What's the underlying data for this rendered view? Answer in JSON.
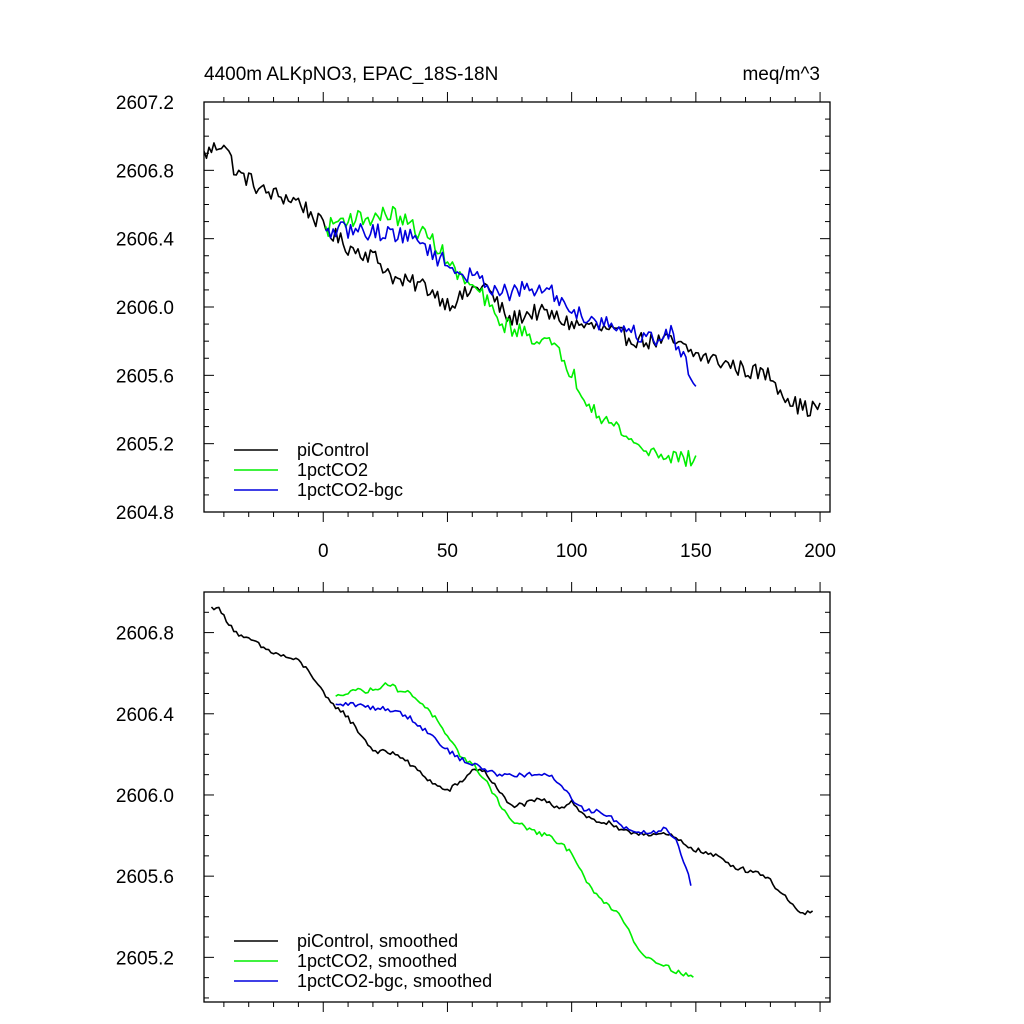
{
  "chart_data": [
    {
      "type": "line",
      "title": "4400m ALKpNO3, EPAC_18S-18N",
      "units": "meq/m^3",
      "xlabel": "",
      "ylabel": "",
      "xlim": [
        -48,
        204
      ],
      "ylim": [
        2604.8,
        2607.2
      ],
      "x_ticks": [
        0,
        50,
        100,
        150,
        200
      ],
      "x_tick_labels": [
        "0",
        "50",
        "100",
        "150",
        "200"
      ],
      "y_ticks": [
        2604.8,
        2605.2,
        2605.6,
        2606.0,
        2606.4,
        2606.8,
        2607.2
      ],
      "y_tick_labels": [
        "2604.8",
        "2605.2",
        "2605.6",
        "2606.0",
        "2606.4",
        "2606.8",
        "2607.2"
      ],
      "legend_position": "bottom-left",
      "series": [
        {
          "name": "piControl",
          "color": "#000000",
          "noise": 0.05,
          "x_range": [
            -48,
            200
          ],
          "anchors": [
            [
              -48,
              2606.89
            ],
            [
              -45,
              2606.92
            ],
            [
              -40,
              2606.97
            ],
            [
              -35,
              2606.78
            ],
            [
              -30,
              2606.75
            ],
            [
              -25,
              2606.68
            ],
            [
              -20,
              2606.66
            ],
            [
              -10,
              2606.62
            ],
            [
              0,
              2606.47
            ],
            [
              10,
              2606.35
            ],
            [
              20,
              2606.3
            ],
            [
              30,
              2606.15
            ],
            [
              40,
              2606.13
            ],
            [
              45,
              2606.08
            ],
            [
              50,
              2606.02
            ],
            [
              55,
              2606.05
            ],
            [
              60,
              2606.1
            ],
            [
              65,
              2606.13
            ],
            [
              70,
              2606.02
            ],
            [
              75,
              2605.92
            ],
            [
              80,
              2605.95
            ],
            [
              85,
              2605.97
            ],
            [
              90,
              2605.96
            ],
            [
              95,
              2605.93
            ],
            [
              100,
              2605.9
            ],
            [
              110,
              2605.88
            ],
            [
              120,
              2605.83
            ],
            [
              130,
              2605.8
            ],
            [
              140,
              2605.8
            ],
            [
              150,
              2605.72
            ],
            [
              160,
              2605.68
            ],
            [
              170,
              2605.63
            ],
            [
              180,
              2605.6
            ],
            [
              185,
              2605.5
            ],
            [
              190,
              2605.43
            ],
            [
              195,
              2605.4
            ],
            [
              200,
              2605.42
            ]
          ]
        },
        {
          "name": "1pctCO2",
          "color": "#00ee00",
          "noise": 0.05,
          "x_range": [
            1,
            150
          ],
          "anchors": [
            [
              1,
              2606.45
            ],
            [
              5,
              2606.5
            ],
            [
              10,
              2606.52
            ],
            [
              20,
              2606.52
            ],
            [
              27,
              2606.55
            ],
            [
              35,
              2606.48
            ],
            [
              45,
              2606.38
            ],
            [
              50,
              2606.27
            ],
            [
              55,
              2606.17
            ],
            [
              60,
              2606.12
            ],
            [
              65,
              2606.05
            ],
            [
              70,
              2605.92
            ],
            [
              80,
              2605.85
            ],
            [
              90,
              2605.8
            ],
            [
              95,
              2605.72
            ],
            [
              100,
              2605.62
            ],
            [
              105,
              2605.48
            ],
            [
              110,
              2605.4
            ],
            [
              115,
              2605.32
            ],
            [
              120,
              2605.28
            ],
            [
              125,
              2605.2
            ],
            [
              130,
              2605.16
            ],
            [
              140,
              2605.13
            ],
            [
              150,
              2605.1
            ]
          ]
        },
        {
          "name": "1pctCO2-bgc",
          "color": "#0000dd",
          "noise": 0.05,
          "x_range": [
            1,
            150
          ],
          "anchors": [
            [
              1,
              2606.42
            ],
            [
              5,
              2606.45
            ],
            [
              10,
              2606.45
            ],
            [
              20,
              2606.44
            ],
            [
              30,
              2606.43
            ],
            [
              40,
              2606.38
            ],
            [
              45,
              2606.3
            ],
            [
              55,
              2606.2
            ],
            [
              65,
              2606.15
            ],
            [
              70,
              2606.1
            ],
            [
              75,
              2606.08
            ],
            [
              80,
              2606.1
            ],
            [
              90,
              2606.1
            ],
            [
              95,
              2606.05
            ],
            [
              100,
              2605.98
            ],
            [
              110,
              2605.92
            ],
            [
              120,
              2605.88
            ],
            [
              130,
              2605.82
            ],
            [
              135,
              2605.82
            ],
            [
              140,
              2605.85
            ],
            [
              145,
              2605.7
            ],
            [
              150,
              2605.55
            ]
          ]
        }
      ]
    },
    {
      "type": "line",
      "title": "",
      "xlabel": "",
      "ylabel": "",
      "xlim": [
        -48,
        204
      ],
      "ylim": [
        2604.98,
        2607.0
      ],
      "x_ticks": [
        0,
        50,
        100,
        150,
        200
      ],
      "y_ticks": [
        2605.2,
        2605.6,
        2606.0,
        2606.4,
        2606.8
      ],
      "y_tick_labels": [
        "2605.2",
        "2605.6",
        "2606.0",
        "2606.4",
        "2606.8"
      ],
      "legend_position": "bottom-left",
      "series": [
        {
          "name": "piControl, smoothed",
          "color": "#000000",
          "noise": 0.012,
          "x_range": [
            -45,
            197
          ],
          "anchors": [
            [
              -45,
              2606.92
            ],
            [
              -43,
              2606.93
            ],
            [
              -40,
              2606.88
            ],
            [
              -35,
              2606.8
            ],
            [
              -32,
              2606.77
            ],
            [
              -28,
              2606.76
            ],
            [
              -25,
              2606.73
            ],
            [
              -20,
              2606.7
            ],
            [
              -15,
              2606.68
            ],
            [
              -10,
              2606.66
            ],
            [
              -5,
              2606.6
            ],
            [
              0,
              2606.5
            ],
            [
              3,
              2606.45
            ],
            [
              7,
              2606.42
            ],
            [
              10,
              2606.38
            ],
            [
              15,
              2606.3
            ],
            [
              20,
              2606.22
            ],
            [
              25,
              2606.21
            ],
            [
              30,
              2606.2
            ],
            [
              35,
              2606.15
            ],
            [
              40,
              2606.1
            ],
            [
              45,
              2606.05
            ],
            [
              50,
              2606.02
            ],
            [
              55,
              2606.06
            ],
            [
              60,
              2606.12
            ],
            [
              63,
              2606.13
            ],
            [
              66,
              2606.1
            ],
            [
              70,
              2606.03
            ],
            [
              75,
              2605.95
            ],
            [
              80,
              2605.95
            ],
            [
              85,
              2605.97
            ],
            [
              88,
              2605.98
            ],
            [
              92,
              2605.95
            ],
            [
              96,
              2605.94
            ],
            [
              100,
              2605.97
            ],
            [
              105,
              2605.9
            ],
            [
              110,
              2605.87
            ],
            [
              115,
              2605.86
            ],
            [
              120,
              2605.82
            ],
            [
              130,
              2605.81
            ],
            [
              140,
              2605.8
            ],
            [
              145,
              2605.76
            ],
            [
              150,
              2605.73
            ],
            [
              155,
              2605.71
            ],
            [
              160,
              2605.69
            ],
            [
              165,
              2605.65
            ],
            [
              170,
              2605.63
            ],
            [
              175,
              2605.62
            ],
            [
              178,
              2605.6
            ],
            [
              182,
              2605.55
            ],
            [
              186,
              2605.5
            ],
            [
              189,
              2605.45
            ],
            [
              192,
              2605.41
            ],
            [
              194,
              2605.42
            ],
            [
              197,
              2605.43
            ]
          ]
        },
        {
          "name": "1pctCO2, smoothed",
          "color": "#00ee00",
          "noise": 0.012,
          "x_range": [
            5,
            149
          ],
          "anchors": [
            [
              5,
              2606.48
            ],
            [
              8,
              2606.5
            ],
            [
              12,
              2606.52
            ],
            [
              18,
              2606.51
            ],
            [
              22,
              2606.53
            ],
            [
              26,
              2606.55
            ],
            [
              30,
              2606.52
            ],
            [
              35,
              2606.5
            ],
            [
              40,
              2606.45
            ],
            [
              45,
              2606.38
            ],
            [
              50,
              2606.28
            ],
            [
              55,
              2606.2
            ],
            [
              60,
              2606.15
            ],
            [
              65,
              2606.08
            ],
            [
              70,
              2605.98
            ],
            [
              75,
              2605.88
            ],
            [
              80,
              2605.85
            ],
            [
              85,
              2605.82
            ],
            [
              90,
              2605.8
            ],
            [
              95,
              2605.76
            ],
            [
              100,
              2605.72
            ],
            [
              103,
              2605.65
            ],
            [
              107,
              2605.55
            ],
            [
              112,
              2605.48
            ],
            [
              118,
              2605.43
            ],
            [
              122,
              2605.36
            ],
            [
              126,
              2605.26
            ],
            [
              130,
              2605.2
            ],
            [
              135,
              2605.18
            ],
            [
              140,
              2605.14
            ],
            [
              145,
              2605.12
            ],
            [
              149,
              2605.1
            ]
          ]
        },
        {
          "name": "1pctCO2-bgc, smoothed",
          "color": "#0000dd",
          "noise": 0.012,
          "x_range": [
            5,
            148
          ],
          "anchors": [
            [
              5,
              2606.44
            ],
            [
              10,
              2606.45
            ],
            [
              15,
              2606.44
            ],
            [
              20,
              2606.43
            ],
            [
              28,
              2606.42
            ],
            [
              35,
              2606.38
            ],
            [
              40,
              2606.33
            ],
            [
              45,
              2606.28
            ],
            [
              50,
              2606.22
            ],
            [
              55,
              2606.18
            ],
            [
              60,
              2606.15
            ],
            [
              65,
              2606.13
            ],
            [
              70,
              2606.1
            ],
            [
              75,
              2606.1
            ],
            [
              85,
              2606.1
            ],
            [
              92,
              2606.09
            ],
            [
              96,
              2606.05
            ],
            [
              100,
              2605.98
            ],
            [
              105,
              2605.93
            ],
            [
              110,
              2605.92
            ],
            [
              115,
              2605.9
            ],
            [
              120,
              2605.85
            ],
            [
              125,
              2605.82
            ],
            [
              130,
              2605.82
            ],
            [
              135,
              2605.82
            ],
            [
              138,
              2605.84
            ],
            [
              142,
              2605.78
            ],
            [
              146,
              2605.65
            ],
            [
              148,
              2605.56
            ]
          ]
        }
      ]
    }
  ]
}
